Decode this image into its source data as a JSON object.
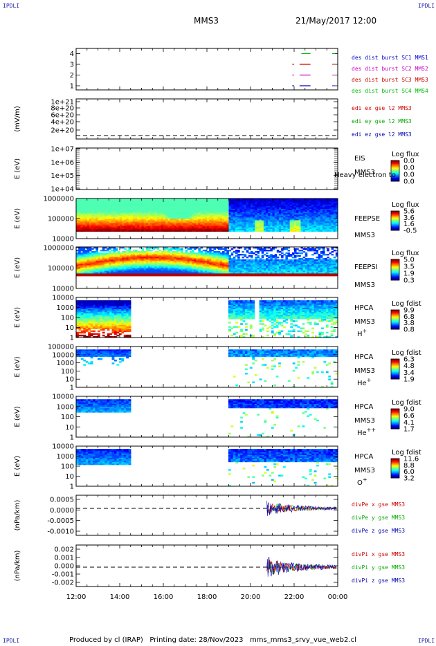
{
  "header": {
    "corner_text": "IPDLI",
    "spacecraft": "MMS3",
    "datetime": "21/May/2017 12:00"
  },
  "footer": {
    "text": "Produced by cl (IRAP)   Printing date: 28/Nov/2023   mms_mms3_srvy_vue_web2.cl"
  },
  "chart_data": [
    {
      "type": "line",
      "id": "availability",
      "ylabel": "",
      "yticks": [
        "1",
        "2",
        "3",
        "4"
      ],
      "ylim": [
        0.5,
        4.5
      ],
      "x_range": [
        "12:00",
        "00:00"
      ],
      "series": [
        {
          "name": "des dist burst SC1 MMS1",
          "color": "#0000cc",
          "y": 1,
          "segments": [
            [
              "21:55",
              "22:00"
            ],
            [
              "22:15",
              "22:45"
            ]
          ]
        },
        {
          "name": "des dist burst SC2 MMS2",
          "color": "#cc00cc",
          "y": 2,
          "segments": [
            [
              "21:55",
              "22:00"
            ],
            [
              "22:15",
              "22:45"
            ]
          ]
        },
        {
          "name": "des dist burst SC3 MMS3",
          "color": "#cc0000",
          "y": 3,
          "segments": [
            [
              "21:55",
              "22:00"
            ],
            [
              "22:15",
              "22:45"
            ]
          ]
        },
        {
          "name": "des dist burst SC4 MMS4",
          "color": "#00bb00",
          "y": 4,
          "segments": [
            [
              "22:20",
              "22:45"
            ]
          ]
        }
      ]
    },
    {
      "type": "line",
      "id": "edi",
      "ylabel": "(mV/m)",
      "yticks": [
        "2e+20",
        "4e+20",
        "6e+20",
        "8e+20",
        "1e+21"
      ],
      "series_labels": [
        {
          "name": "edi ex gse l2 MMS3",
          "color": "#cc0000"
        },
        {
          "name": "edi ey gse l2 MMS3",
          "color": "#00aa00"
        },
        {
          "name": "edi ez gse l2 MMS3",
          "color": "#0000aa"
        }
      ],
      "note": "flat near zero (dashed zero line)"
    },
    {
      "type": "heatmap",
      "id": "eis",
      "ylabel": "E (eV)",
      "yticks": [
        "1e+04",
        "1e+05",
        "1e+06",
        "1e+07"
      ],
      "labels": [
        "EIS",
        "MMS3",
        "Heavy electron to"
      ],
      "colorbar": {
        "title": "Log flux",
        "ticks": [
          "0.0",
          "0.0",
          "0.0",
          "0.0"
        ]
      },
      "note": "no data"
    },
    {
      "type": "heatmap",
      "id": "feepse",
      "ylabel": "E (eV)",
      "yticks": [
        "10000",
        "100000",
        "1000000"
      ],
      "labels": [
        "FEEPSE",
        "MMS3"
      ],
      "colorbar": {
        "title": "Log flux",
        "ticks": [
          "5.6",
          "3.6",
          "1.6",
          "-0.5"
        ]
      },
      "note": "high flux 12:00-19:00 (peak ~17:00), lower blue flux 19:00-00:00"
    },
    {
      "type": "heatmap",
      "id": "feepsi",
      "ylabel": "E (eV)",
      "yticks": [
        "10000",
        "100000",
        "1000000"
      ],
      "labels": [
        "FEEPSI",
        "MMS3"
      ],
      "colorbar": {
        "title": "Log flux",
        "ticks": [
          "5.0",
          "3.5",
          "1.9",
          "0.3"
        ]
      }
    },
    {
      "type": "heatmap",
      "id": "hpca_h",
      "ylabel": "E (eV)",
      "yticks": [
        "1",
        "10",
        "100",
        "1000",
        "10000"
      ],
      "labels": [
        "HPCA",
        "MMS3",
        "H+"
      ],
      "colorbar": {
        "title": "Log fdist",
        "ticks": [
          "9.9",
          "6.8",
          "3.8",
          "0.8"
        ]
      },
      "note": "data 12:00-14:30 and 19:00-00:00"
    },
    {
      "type": "heatmap",
      "id": "hpca_he",
      "ylabel": "E (eV)",
      "yticks": [
        "1",
        "10",
        "100",
        "1000",
        "10000",
        "100000"
      ],
      "labels": [
        "HPCA",
        "MMS3",
        "He+"
      ],
      "colorbar": {
        "title": "Log fdist",
        "ticks": [
          "6.3",
          "4.8",
          "3.4",
          "1.9"
        ]
      }
    },
    {
      "type": "heatmap",
      "id": "hpca_hepp",
      "ylabel": "E (eV)",
      "yticks": [
        "1",
        "10",
        "100",
        "1000",
        "10000"
      ],
      "labels": [
        "HPCA",
        "MMS3",
        "He++"
      ],
      "colorbar": {
        "title": "Log fdist",
        "ticks": [
          "9.0",
          "6.6",
          "4.1",
          "1.7"
        ]
      }
    },
    {
      "type": "heatmap",
      "id": "hpca_o",
      "ylabel": "E (eV)",
      "yticks": [
        "1",
        "10",
        "100",
        "1000",
        "10000"
      ],
      "labels": [
        "HPCA",
        "MMS3",
        "O+"
      ],
      "colorbar": {
        "title": "Log fdist",
        "ticks": [
          "11.6",
          "8.8",
          "6.0",
          "3.2"
        ]
      }
    },
    {
      "type": "line",
      "id": "divpe",
      "ylabel": "(nPa/km)",
      "yticks": [
        "-0.0010",
        "-0.0005",
        "0.0000",
        "0.0005"
      ],
      "ylim": [
        -0.0013,
        0.0006
      ],
      "series_labels": [
        {
          "name": "divPe x gse MMS3",
          "color": "#cc0000"
        },
        {
          "name": "divPe y gse MMS3",
          "color": "#00aa00"
        },
        {
          "name": "divPe z gse MMS3",
          "color": "#0000aa"
        }
      ],
      "note": "data from ~20:45 to 00:00"
    },
    {
      "type": "line",
      "id": "divpi",
      "ylabel": "(nPa/km)",
      "yticks": [
        "-0.002",
        "-0.001",
        "0.000",
        "0.001",
        "0.002"
      ],
      "ylim": [
        -0.0025,
        0.0025
      ],
      "series_labels": [
        {
          "name": "divPi x gse MMS3",
          "color": "#cc0000"
        },
        {
          "name": "divPi y gse MMS3",
          "color": "#00aa00"
        },
        {
          "name": "divPi z gse MMS3",
          "color": "#0000aa"
        }
      ],
      "note": "data from ~20:45 to 00:00"
    }
  ],
  "x_axis": {
    "ticks": [
      "12:00",
      "14:00",
      "16:00",
      "18:00",
      "20:00",
      "22:00",
      "00:00"
    ]
  }
}
